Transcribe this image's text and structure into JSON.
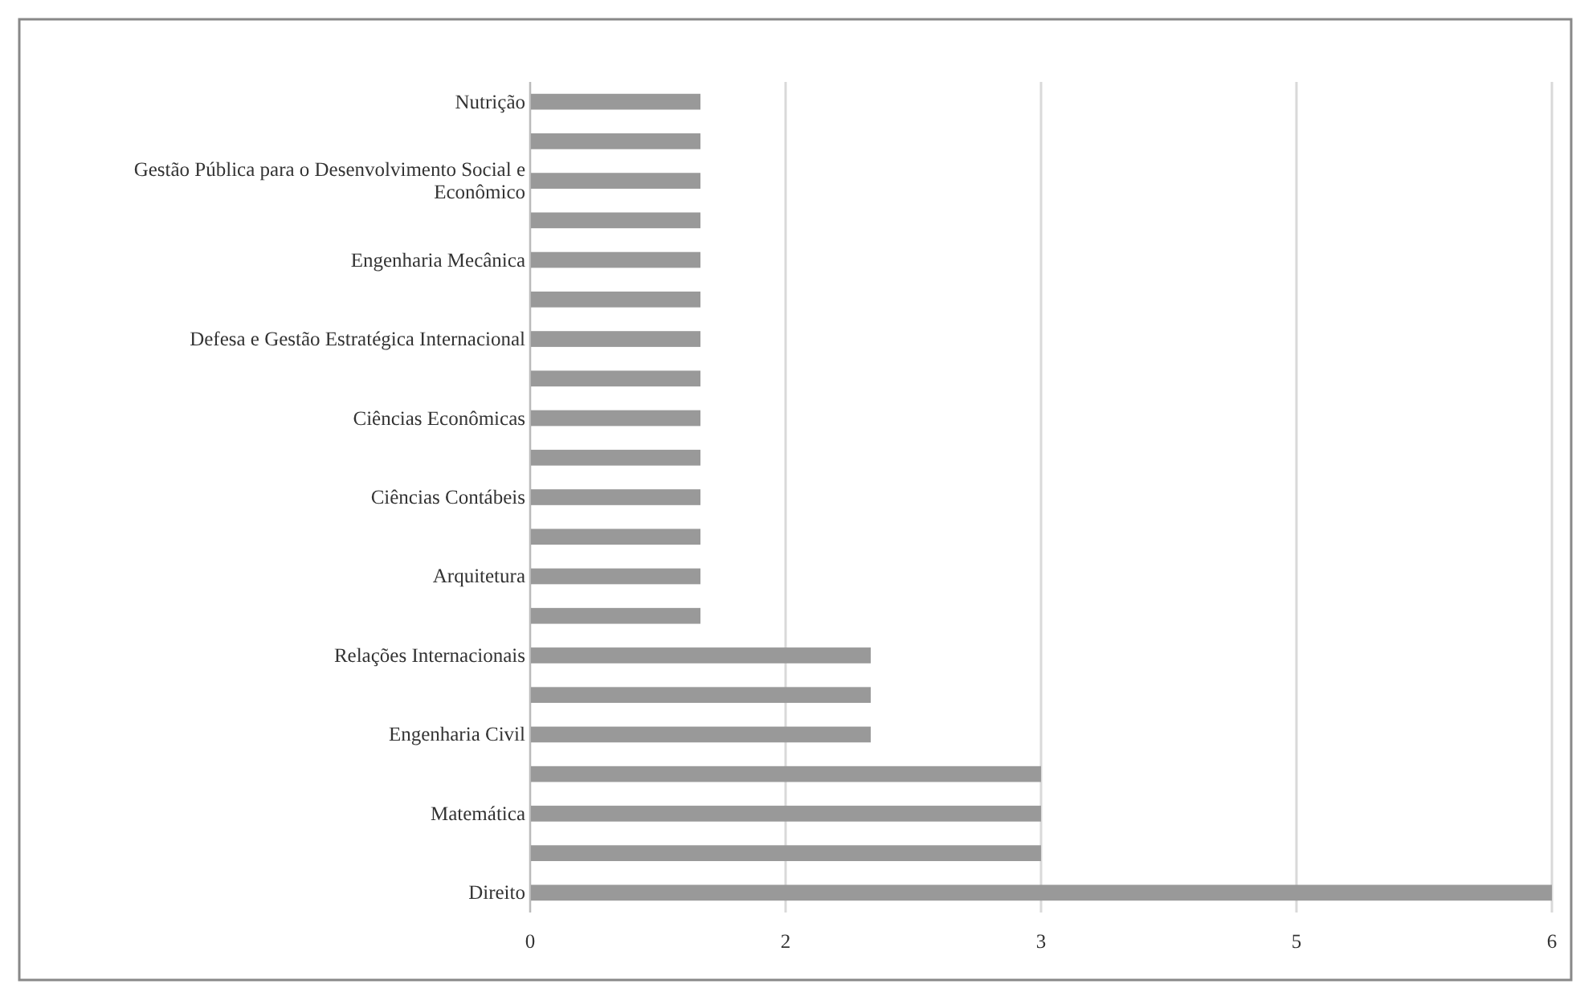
{
  "chart_data": {
    "type": "bar",
    "orientation": "horizontal",
    "categories": [
      "Nutrição",
      null,
      "Gestão Pública para o Desenvolvimento Social e Econômico",
      null,
      "Engenharia Mecânica",
      null,
      "Defesa e Gestão Estratégica Internacional",
      null,
      "Ciências Econômicas",
      null,
      "Ciências Contábeis",
      null,
      "Arquitetura",
      null,
      "Relações Internacionais",
      null,
      "Engenharia Civil",
      null,
      "Matemática",
      null,
      "Direito"
    ],
    "values": [
      1,
      1,
      1,
      1,
      1,
      1,
      1,
      1,
      1,
      1,
      1,
      1,
      1,
      1,
      2,
      2,
      2,
      3,
      3,
      3,
      6
    ],
    "color": "#999999",
    "xlim": [
      0,
      6
    ],
    "xticks": [
      0,
      {
        "value": 1.5,
        "label": "2"
      },
      3,
      {
        "value": 4.5,
        "label": "5"
      },
      6
    ],
    "grid": "x"
  }
}
